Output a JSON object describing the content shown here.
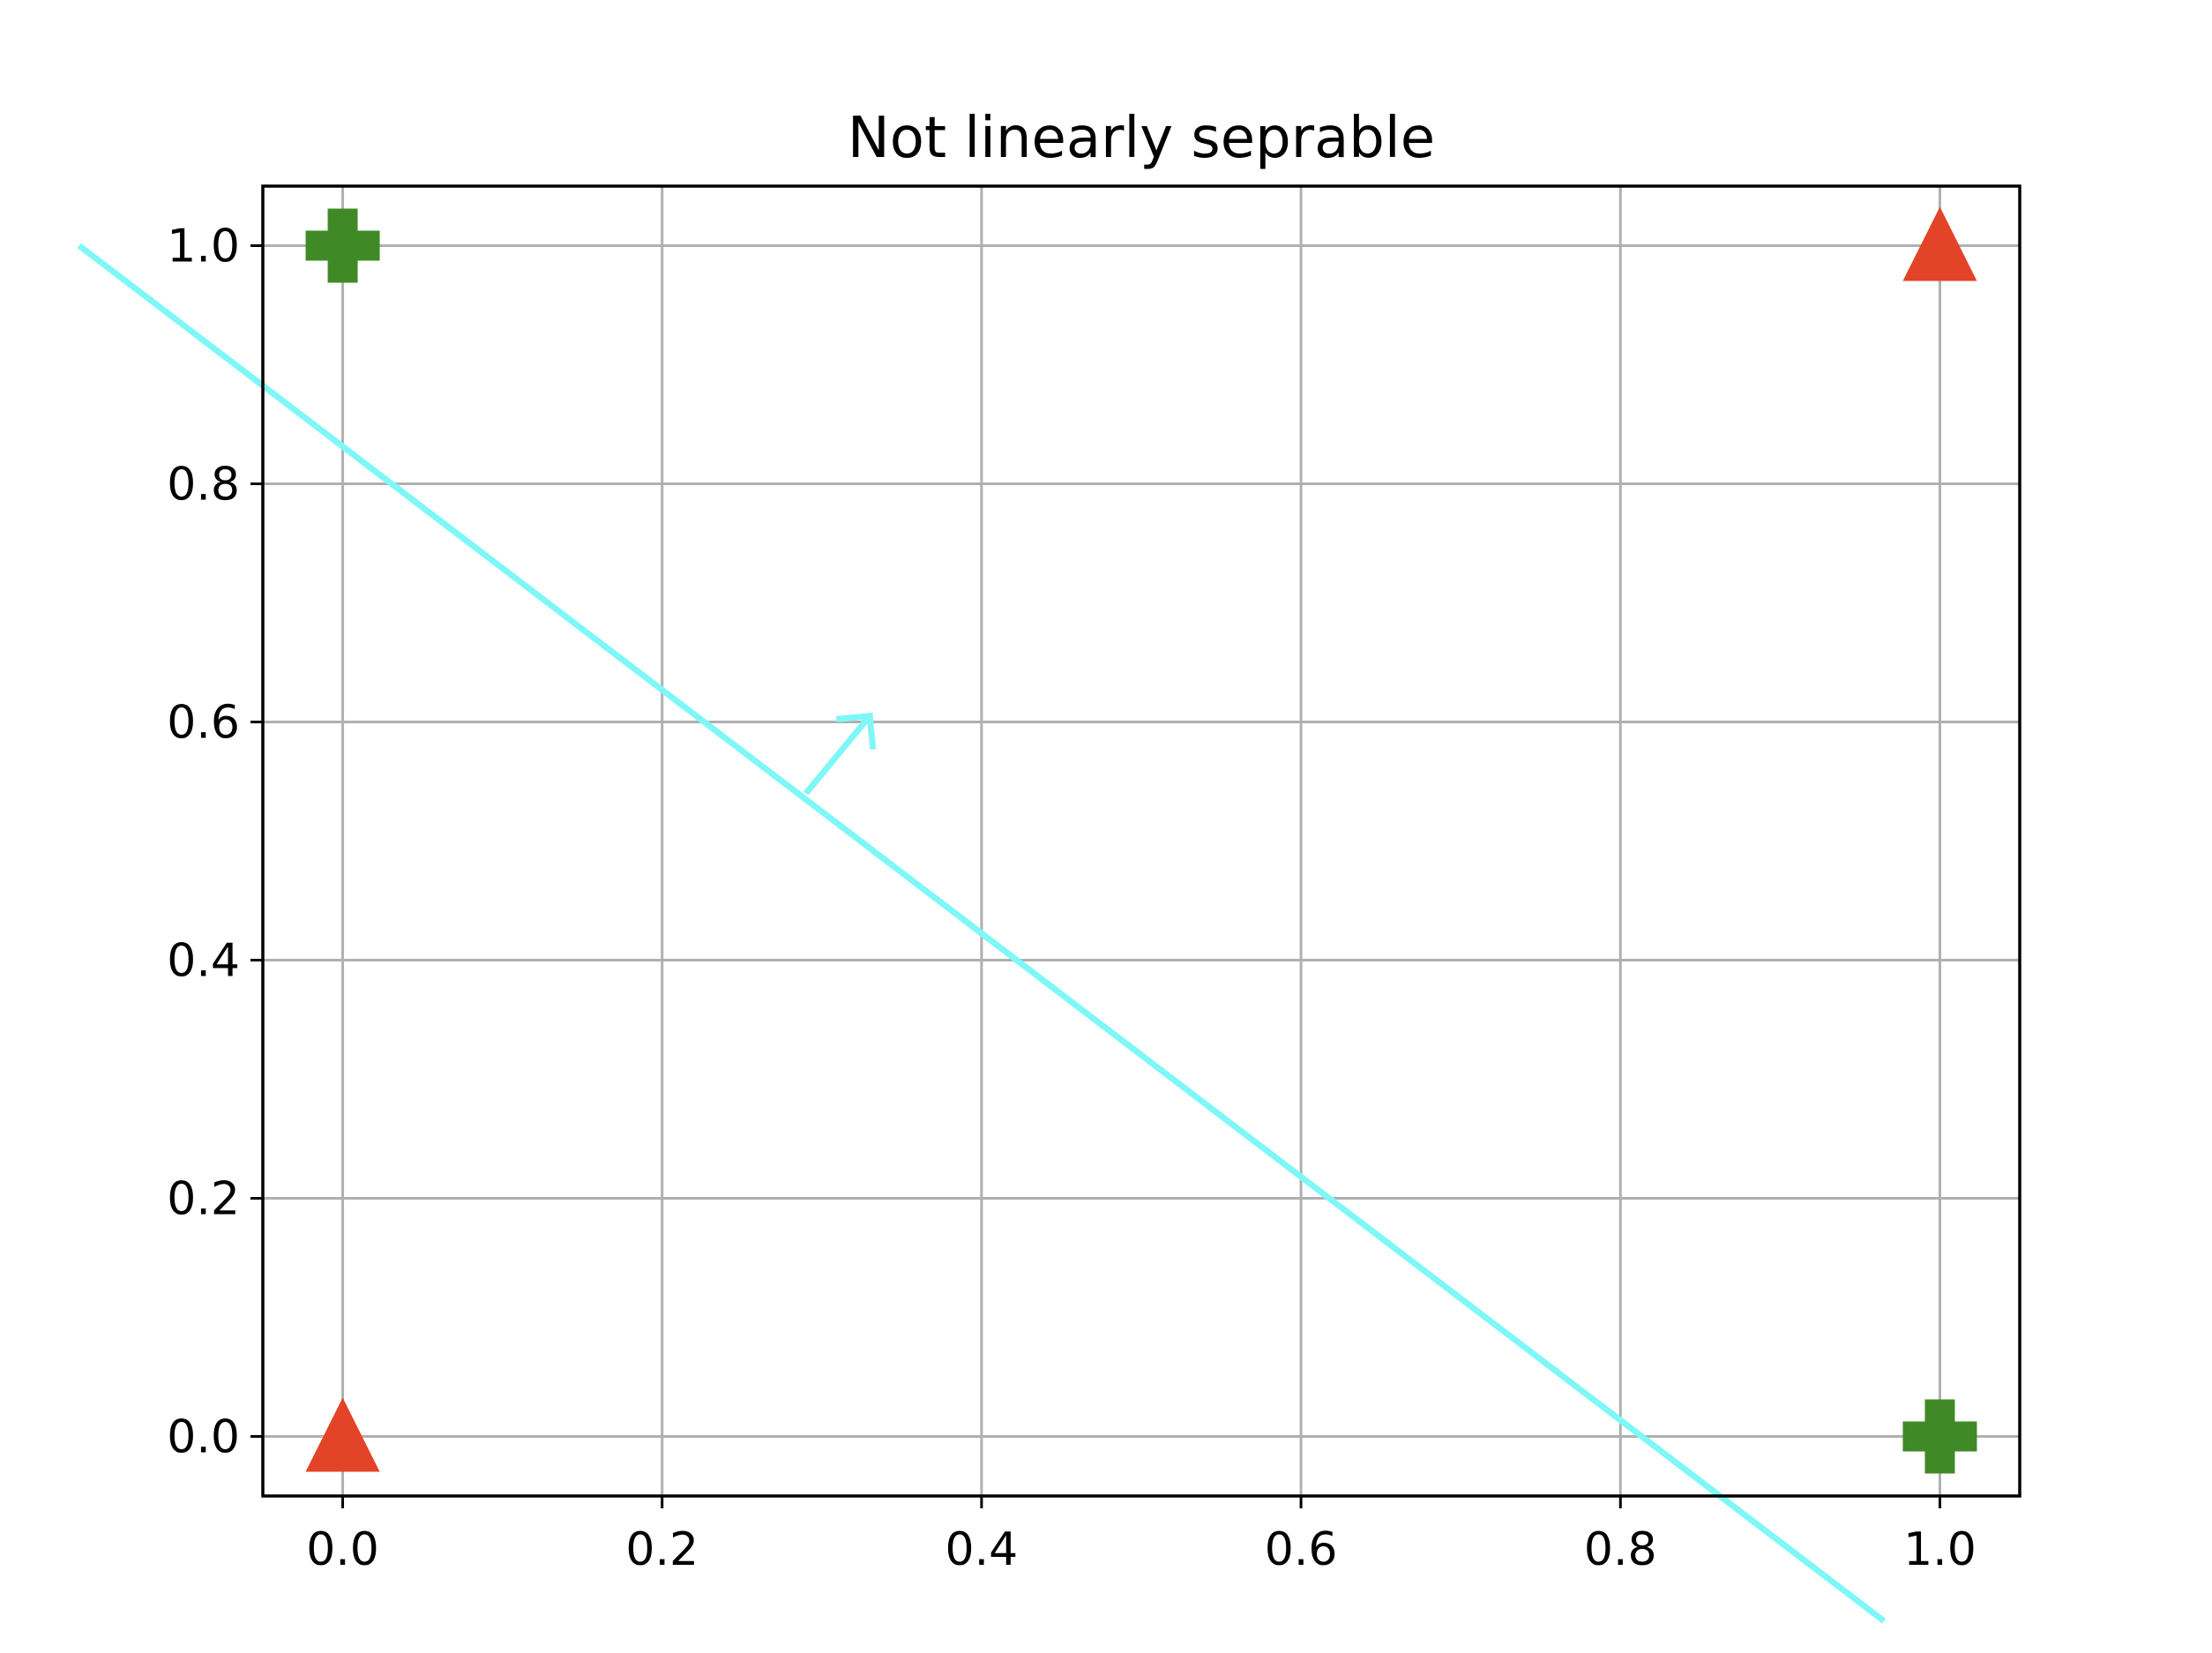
{
  "chart_data": {
    "type": "scatter",
    "title": "Not linearly seprable",
    "xlabel": "",
    "ylabel": "",
    "xlim": [
      -0.05,
      1.05
    ],
    "ylim": [
      -0.05,
      1.05
    ],
    "x_ticks": [
      "0.0",
      "0.2",
      "0.4",
      "0.6",
      "0.8",
      "1.0"
    ],
    "y_ticks": [
      "0.0",
      "0.2",
      "0.4",
      "0.6",
      "0.8",
      "1.0"
    ],
    "grid": true,
    "series": [
      {
        "marker": "plus",
        "color": "#3f8a26",
        "points": [
          [
            0,
            1
          ],
          [
            1,
            0
          ]
        ]
      },
      {
        "marker": "triangle",
        "color": "#e34326",
        "points": [
          [
            1,
            1
          ],
          [
            0,
            0
          ]
        ]
      }
    ],
    "decision_line": {
      "color": "#7ff7f7",
      "from": [
        -0.165,
        1.0
      ],
      "to": [
        0.965,
        -0.155
      ]
    },
    "normal_arrow": {
      "color": "#7ff7f7",
      "from": [
        0.29,
        0.54
      ],
      "to": [
        0.33,
        0.605
      ]
    }
  }
}
